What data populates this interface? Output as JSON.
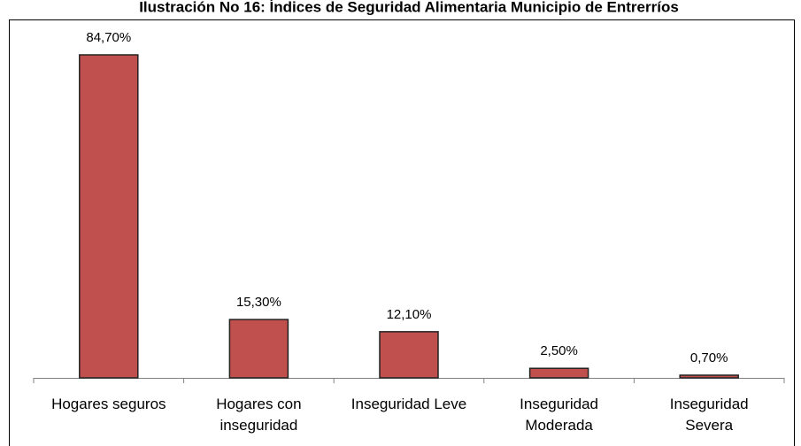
{
  "chart_data": {
    "type": "bar",
    "title": "Ilustración No 16: Índices de Seguridad Alimentaria Municipio de Entrerríos",
    "categories": [
      [
        "Hogares seguros"
      ],
      [
        "Hogares con",
        "inseguridad"
      ],
      [
        "Inseguridad Leve"
      ],
      [
        "Inseguridad",
        "Moderada"
      ],
      [
        "Inseguridad",
        "Severa"
      ]
    ],
    "values": [
      84.7,
      15.3,
      12.1,
      2.5,
      0.7
    ],
    "value_labels": [
      "84,70%",
      "15,30%",
      "12,10%",
      "2,50%",
      "0,70%"
    ],
    "color": "#c0504d"
  }
}
